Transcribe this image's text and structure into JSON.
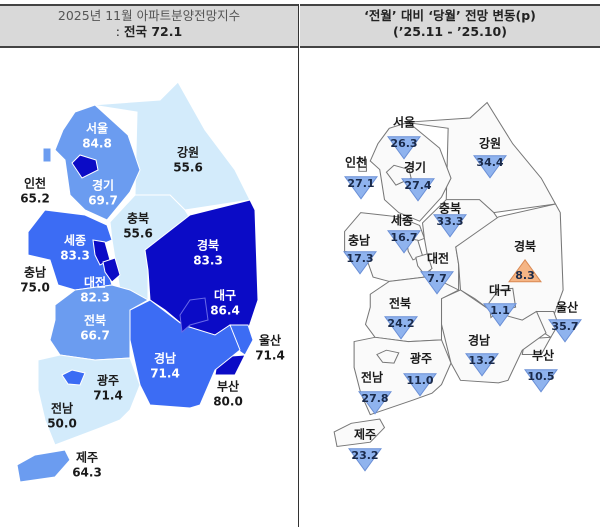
{
  "left_header": {
    "line1": "2025년 11월 아파트분양전망지수",
    "line2_prefix": ": ",
    "line2_bold": "전국 72.1"
  },
  "right_header": {
    "line1": "‘전월’ 대비 ‘당월’ 전망 변동(p)",
    "line2": "(’25.11  -  ’25.10)"
  },
  "colors": {
    "light": "#d3ebfb",
    "medium": "#6b9cf0",
    "strong": "#3c6cf4",
    "navy": "#0b0bc6",
    "decrease": "#8fb3ee",
    "increase": "#f5b585"
  },
  "left_map": [
    {
      "region": "서울",
      "value": "84.8"
    },
    {
      "region": "강원",
      "value": "55.6"
    },
    {
      "region": "인천",
      "value": "65.2"
    },
    {
      "region": "경기",
      "value": "69.7"
    },
    {
      "region": "충북",
      "value": "55.6"
    },
    {
      "region": "세종",
      "value": "83.3"
    },
    {
      "region": "경북",
      "value": "83.3"
    },
    {
      "region": "충남",
      "value": "75.0"
    },
    {
      "region": "대전",
      "value": "82.3"
    },
    {
      "region": "대구",
      "value": "86.4"
    },
    {
      "region": "전북",
      "value": "66.7"
    },
    {
      "region": "울산",
      "value": "71.4"
    },
    {
      "region": "경남",
      "value": "71.4"
    },
    {
      "region": "광주",
      "value": "71.4"
    },
    {
      "region": "부산",
      "value": "80.0"
    },
    {
      "region": "전남",
      "value": "50.0"
    },
    {
      "region": "제주",
      "value": "64.3"
    }
  ],
  "right_map": [
    {
      "region": "서울",
      "change": "26.3",
      "direction": "down"
    },
    {
      "region": "강원",
      "change": "34.4",
      "direction": "down"
    },
    {
      "region": "인천",
      "change": "27.1",
      "direction": "down"
    },
    {
      "region": "경기",
      "change": "27.4",
      "direction": "down"
    },
    {
      "region": "충북",
      "change": "33.3",
      "direction": "down"
    },
    {
      "region": "세종",
      "change": "16.7",
      "direction": "down"
    },
    {
      "region": "충남",
      "change": "17.3",
      "direction": "down"
    },
    {
      "region": "경북",
      "change": "8.3",
      "direction": "up"
    },
    {
      "region": "대전",
      "change": "7.7",
      "direction": "down"
    },
    {
      "region": "대구",
      "change": "1.1",
      "direction": "down"
    },
    {
      "region": "전북",
      "change": "24.2",
      "direction": "down"
    },
    {
      "region": "울산",
      "change": "35.7",
      "direction": "down"
    },
    {
      "region": "경남",
      "change": "13.2",
      "direction": "down"
    },
    {
      "region": "부산",
      "change": "10.5",
      "direction": "down"
    },
    {
      "region": "광주",
      "change": "11.0",
      "direction": "down"
    },
    {
      "region": "전남",
      "change": "27.8",
      "direction": "down"
    },
    {
      "region": "제주",
      "change": "23.2",
      "direction": "down"
    }
  ]
}
